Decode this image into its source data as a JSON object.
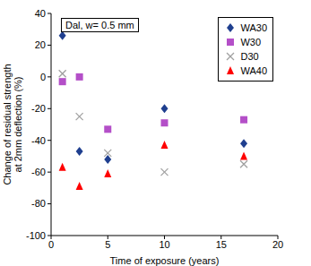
{
  "chart_data": {
    "type": "scatter",
    "annotation": "Dal, w= 0.5 mm",
    "xlabel": "Time of exposure (years)",
    "ylabel": [
      "Change of residual strength",
      "at 2mm deflection (%)"
    ],
    "x": [
      1,
      2.5,
      5,
      10,
      17
    ],
    "series": [
      {
        "name": "WA30",
        "color": "#1f3f8f",
        "marker": "diamond",
        "values": [
          26,
          -47,
          -52,
          -20,
          -42
        ]
      },
      {
        "name": "W30",
        "color": "#b44fc8",
        "marker": "square",
        "values": [
          -3,
          0,
          -33,
          -29,
          -27
        ]
      },
      {
        "name": "D30",
        "color": "#a0a0a0",
        "marker": "x",
        "values": [
          2,
          -25,
          -48,
          -60,
          -55
        ]
      },
      {
        "name": "WA40",
        "color": "#ff0000",
        "marker": "triangle",
        "values": [
          -57,
          -69,
          -61,
          -43,
          -50
        ]
      }
    ],
    "xlim": [
      0,
      20
    ],
    "xticks": [
      0,
      5,
      10,
      15,
      20
    ],
    "ylim": [
      -100,
      40
    ],
    "yticks": [
      -100,
      -80,
      -60,
      -40,
      -20,
      0,
      20,
      40
    ],
    "grid": false,
    "legend": "top-right"
  }
}
